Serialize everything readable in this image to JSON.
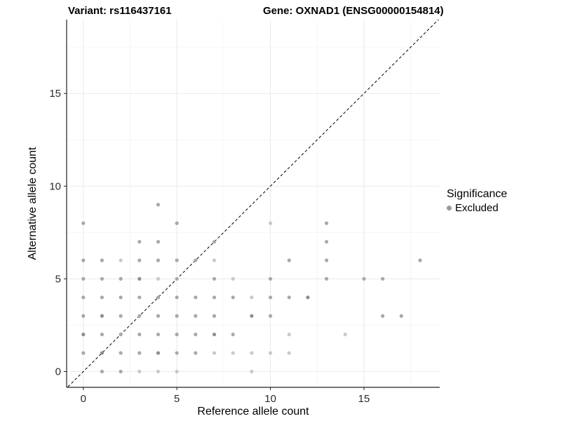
{
  "title_left": "Variant: rs116437161",
  "title_right": "Gene: OXNAD1 (ENSG00000154814)",
  "legend": {
    "title": "Significance",
    "entries": [
      {
        "label": "Excluded",
        "color": "#999999"
      }
    ],
    "position": "right"
  },
  "chart_data": {
    "type": "scatter",
    "title": "",
    "xlabel": "Reference allele count",
    "ylabel": "Alternative allele count",
    "xlim": [
      -0.9,
      19.0
    ],
    "ylim": [
      -0.85,
      19.0
    ],
    "x_ticks": [
      0,
      5,
      10,
      15
    ],
    "y_ticks": [
      0,
      5,
      10,
      15
    ],
    "x_minor_ticks": [
      2.5,
      7.5,
      12.5,
      17.5
    ],
    "y_minor_ticks": [
      2.5,
      7.5,
      12.5,
      17.5
    ],
    "grid": "major+minor, light gray on white",
    "identity_line": {
      "style": "dashed",
      "equation": "y = x",
      "color": "#000000"
    },
    "series_name": "Excluded",
    "point_color": "#999999",
    "shade_colors": {
      "1": "#c9c9c9",
      "2": "#a8a8a8",
      "3": "#8e8e8e"
    },
    "points_note": "each point is [reference_allele_count, alternative_allele_count, shade 1=light 2=medium 3=dark]",
    "points": [
      [
        1,
        0,
        2
      ],
      [
        2,
        0,
        2
      ],
      [
        3,
        0,
        1
      ],
      [
        4,
        0,
        1
      ],
      [
        5,
        0,
        1
      ],
      [
        9,
        0,
        1
      ],
      [
        0,
        1,
        2
      ],
      [
        1,
        1,
        3
      ],
      [
        2,
        1,
        2
      ],
      [
        3,
        1,
        2
      ],
      [
        4,
        1,
        3
      ],
      [
        5,
        1,
        2
      ],
      [
        6,
        1,
        2
      ],
      [
        7,
        1,
        1
      ],
      [
        8,
        1,
        1
      ],
      [
        9,
        1,
        1
      ],
      [
        10,
        1,
        1
      ],
      [
        11,
        1,
        1
      ],
      [
        0,
        2,
        3
      ],
      [
        1,
        2,
        2
      ],
      [
        2,
        2,
        2
      ],
      [
        3,
        2,
        2
      ],
      [
        4,
        2,
        2
      ],
      [
        5,
        2,
        2
      ],
      [
        6,
        2,
        2
      ],
      [
        7,
        2,
        3
      ],
      [
        8,
        2,
        2
      ],
      [
        11,
        2,
        1
      ],
      [
        14,
        2,
        1
      ],
      [
        0,
        3,
        2
      ],
      [
        1,
        3,
        3
      ],
      [
        2,
        3,
        2
      ],
      [
        3,
        3,
        2
      ],
      [
        4,
        3,
        2
      ],
      [
        5,
        3,
        2
      ],
      [
        6,
        3,
        2
      ],
      [
        7,
        3,
        2
      ],
      [
        9,
        3,
        3
      ],
      [
        10,
        3,
        2
      ],
      [
        16,
        3,
        2
      ],
      [
        17,
        3,
        2
      ],
      [
        0,
        4,
        2
      ],
      [
        1,
        4,
        2
      ],
      [
        2,
        4,
        2
      ],
      [
        3,
        4,
        2
      ],
      [
        4,
        4,
        2
      ],
      [
        5,
        4,
        2
      ],
      [
        6,
        4,
        2
      ],
      [
        7,
        4,
        2
      ],
      [
        8,
        4,
        2
      ],
      [
        9,
        4,
        1
      ],
      [
        10,
        4,
        2
      ],
      [
        11,
        4,
        2
      ],
      [
        12,
        4,
        3
      ],
      [
        0,
        5,
        2
      ],
      [
        1,
        5,
        2
      ],
      [
        2,
        5,
        2
      ],
      [
        3,
        5,
        3
      ],
      [
        4,
        5,
        1
      ],
      [
        5,
        5,
        2
      ],
      [
        7,
        5,
        2
      ],
      [
        8,
        5,
        1
      ],
      [
        10,
        5,
        2
      ],
      [
        13,
        5,
        2
      ],
      [
        15,
        5,
        2
      ],
      [
        16,
        5,
        2
      ],
      [
        0,
        6,
        2
      ],
      [
        1,
        6,
        2
      ],
      [
        2,
        6,
        1
      ],
      [
        3,
        6,
        2
      ],
      [
        4,
        6,
        2
      ],
      [
        5,
        6,
        2
      ],
      [
        6,
        6,
        2
      ],
      [
        7,
        6,
        1
      ],
      [
        11,
        6,
        2
      ],
      [
        13,
        6,
        2
      ],
      [
        18,
        6,
        2
      ],
      [
        3,
        7,
        2
      ],
      [
        4,
        7,
        2
      ],
      [
        7,
        7,
        2
      ],
      [
        13,
        7,
        2
      ],
      [
        0,
        8,
        2
      ],
      [
        5,
        8,
        2
      ],
      [
        10,
        8,
        1
      ],
      [
        13,
        8,
        2
      ],
      [
        4,
        9,
        2
      ]
    ]
  },
  "style": {
    "grid_major_color": "#e9e9e9",
    "grid_minor_color": "#f4f4f4",
    "axis_color": "#222222",
    "tick_label_color": "#2b2b2b"
  }
}
